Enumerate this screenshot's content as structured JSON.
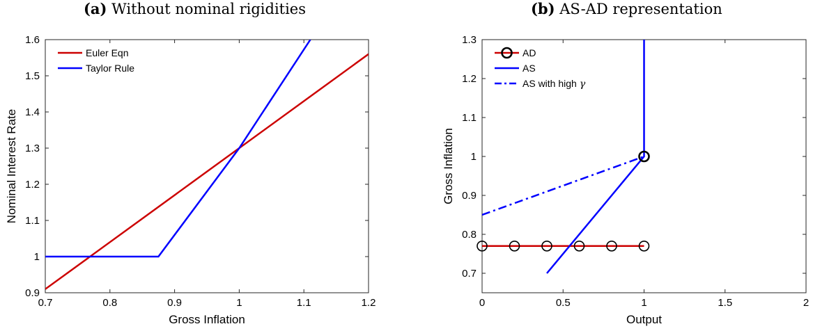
{
  "chart_data": [
    {
      "panel_label": "(a)",
      "title": "Without nominal rigidities",
      "type": "line",
      "xlabel": "Gross Inflation",
      "ylabel": "Nominal Interest Rate",
      "xlim": [
        0.7,
        1.2
      ],
      "ylim": [
        0.9,
        1.6
      ],
      "xticks": [
        "0.7",
        "0.8",
        "0.9",
        "1",
        "1.1",
        "1.2"
      ],
      "yticks": [
        "0.9",
        "1",
        "1.1",
        "1.2",
        "1.3",
        "1.4",
        "1.5",
        "1.6"
      ],
      "grid": false,
      "legend_position": "top-left",
      "series": [
        {
          "name": "Euler Eqn",
          "color": "#cc0000",
          "style": "solid",
          "x": [
            0.7,
            1.2
          ],
          "y": [
            0.91,
            1.56
          ]
        },
        {
          "name": "Taylor Rule",
          "color": "#0000ff",
          "style": "solid",
          "x": [
            0.7,
            0.875,
            1.0,
            1.11
          ],
          "y": [
            1.0,
            1.0,
            1.3,
            1.6
          ]
        }
      ]
    },
    {
      "panel_label": "(b)",
      "title": "AS-AD representation",
      "type": "line",
      "xlabel": "Output",
      "ylabel": "Gross Inflation",
      "xlim": [
        0,
        2
      ],
      "ylim": [
        0.65,
        1.3
      ],
      "xticks": [
        "0",
        "0.5",
        "1",
        "1.5",
        "2"
      ],
      "yticks": [
        "0.7",
        "0.8",
        "0.9",
        "1",
        "1.1",
        "1.2",
        "1.3"
      ],
      "grid": false,
      "legend_position": "top-left",
      "series": [
        {
          "name": "AD",
          "color": "#cc0000",
          "style": "solid",
          "marker": "circle",
          "x": [
            0,
            0.2,
            0.4,
            0.6,
            0.8,
            1.0
          ],
          "y": [
            0.77,
            0.77,
            0.77,
            0.77,
            0.77,
            0.77
          ]
        },
        {
          "name": "AS",
          "color": "#0000ff",
          "style": "solid",
          "x": [
            0.4,
            1.0,
            1.0
          ],
          "y": [
            0.7,
            1.0,
            1.3
          ]
        },
        {
          "name": "AS with high γ",
          "legend_label": "AS with high",
          "legend_symbol": "γ",
          "color": "#0000ff",
          "style": "dashdot",
          "x": [
            0,
            1.0
          ],
          "y": [
            0.85,
            1.0
          ]
        }
      ],
      "highlight_points": [
        {
          "x": 1.0,
          "y": 1.0
        }
      ]
    }
  ]
}
